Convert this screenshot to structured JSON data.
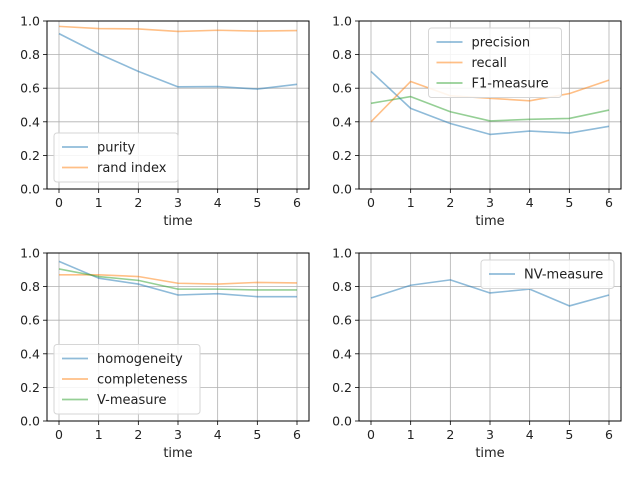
{
  "chart_data": [
    {
      "type": "line",
      "x": [
        0,
        1,
        2,
        3,
        4,
        5,
        6
      ],
      "xlabel": "time",
      "ylabel": "",
      "xlim": [
        0,
        6
      ],
      "ylim": [
        0,
        1
      ],
      "xticks": [
        "0",
        "1",
        "2",
        "3",
        "4",
        "5",
        "6"
      ],
      "yticks": [
        "0.0",
        "0.2",
        "0.4",
        "0.6",
        "0.8",
        "1.0"
      ],
      "grid": true,
      "legend_position": "lower-left",
      "series": [
        {
          "name": "purity",
          "color": "#1f77b4",
          "values": [
            0.925,
            0.805,
            0.7,
            0.608,
            0.61,
            0.595,
            0.623
          ]
        },
        {
          "name": "rand index",
          "color": "#ff7f0e",
          "values": [
            0.968,
            0.955,
            0.953,
            0.938,
            0.945,
            0.94,
            0.943
          ]
        }
      ]
    },
    {
      "type": "line",
      "x": [
        0,
        1,
        2,
        3,
        4,
        5,
        6
      ],
      "xlabel": "time",
      "ylabel": "",
      "xlim": [
        0,
        6
      ],
      "ylim": [
        0,
        1
      ],
      "xticks": [
        "0",
        "1",
        "2",
        "3",
        "4",
        "5",
        "6"
      ],
      "yticks": [
        "0.0",
        "0.2",
        "0.4",
        "0.6",
        "0.8",
        "1.0"
      ],
      "grid": true,
      "legend_position": "upper-center",
      "series": [
        {
          "name": "precision",
          "color": "#1f77b4",
          "values": [
            0.7,
            0.48,
            0.39,
            0.325,
            0.345,
            0.333,
            0.373
          ]
        },
        {
          "name": "recall",
          "color": "#ff7f0e",
          "values": [
            0.4,
            0.64,
            0.555,
            0.54,
            0.525,
            0.568,
            0.648
          ]
        },
        {
          "name": "F1-measure",
          "color": "#2ca02c",
          "values": [
            0.51,
            0.55,
            0.46,
            0.405,
            0.415,
            0.42,
            0.47
          ]
        }
      ]
    },
    {
      "type": "line",
      "x": [
        0,
        1,
        2,
        3,
        4,
        5,
        6
      ],
      "xlabel": "time",
      "ylabel": "",
      "xlim": [
        0,
        6
      ],
      "ylim": [
        0,
        1
      ],
      "xticks": [
        "0",
        "1",
        "2",
        "3",
        "4",
        "5",
        "6"
      ],
      "yticks": [
        "0.0",
        "0.2",
        "0.4",
        "0.6",
        "0.8",
        "1.0"
      ],
      "grid": true,
      "legend_position": "lower-left",
      "series": [
        {
          "name": "homogeneity",
          "color": "#1f77b4",
          "values": [
            0.95,
            0.85,
            0.815,
            0.75,
            0.758,
            0.74,
            0.74
          ]
        },
        {
          "name": "completeness",
          "color": "#ff7f0e",
          "values": [
            0.87,
            0.87,
            0.86,
            0.82,
            0.815,
            0.825,
            0.822
          ]
        },
        {
          "name": "V-measure",
          "color": "#2ca02c",
          "values": [
            0.905,
            0.86,
            0.837,
            0.785,
            0.785,
            0.78,
            0.78
          ]
        }
      ]
    },
    {
      "type": "line",
      "x": [
        0,
        1,
        2,
        3,
        4,
        5,
        6
      ],
      "xlabel": "time",
      "ylabel": "",
      "xlim": [
        0,
        6
      ],
      "ylim": [
        0,
        1
      ],
      "xticks": [
        "0",
        "1",
        "2",
        "3",
        "4",
        "5",
        "6"
      ],
      "yticks": [
        "0.0",
        "0.2",
        "0.4",
        "0.6",
        "0.8",
        "1.0"
      ],
      "grid": true,
      "legend_position": "upper-right",
      "series": [
        {
          "name": "NV-measure",
          "color": "#1f77b4",
          "values": [
            0.732,
            0.808,
            0.84,
            0.762,
            0.785,
            0.685,
            0.75
          ]
        }
      ]
    }
  ]
}
